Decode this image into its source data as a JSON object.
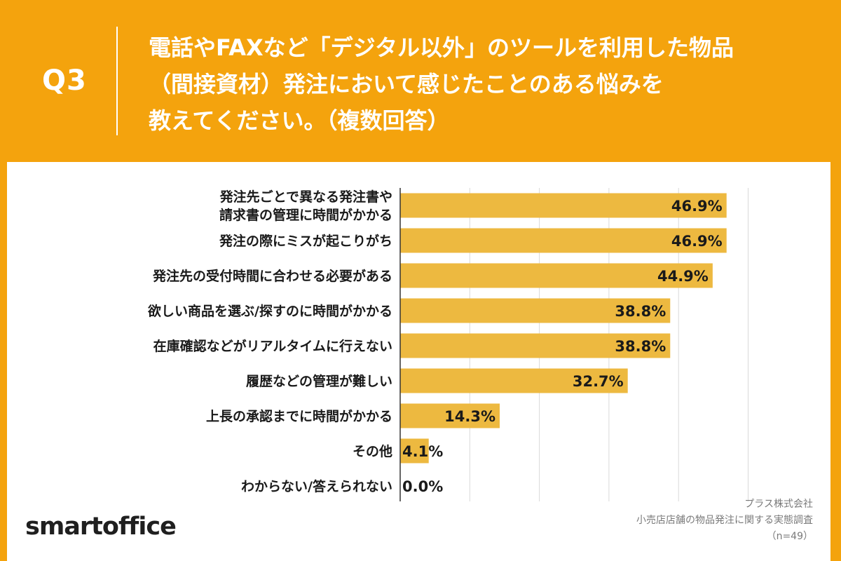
{
  "header": {
    "question_no": "Q3",
    "question_lines": [
      "電話やFAXなど「デジタル以外」のツールを利用した物品",
      "（間接資材）発注において感じたことのある悩みを",
      "教えてください。（複数回答）"
    ]
  },
  "chart_data": {
    "type": "bar",
    "orientation": "horizontal",
    "categories": [
      [
        "発注先ごとで異なる発注書や",
        "請求書の管理に時間がかかる"
      ],
      [
        "発注の際にミスが起こりがち"
      ],
      [
        "発注先の受付時間に合わせる必要がある"
      ],
      [
        "欲しい商品を選ぶ/探すのに時間がかかる"
      ],
      [
        "在庫確認などがリアルタイムに行えない"
      ],
      [
        "履歴などの管理が難しい"
      ],
      [
        "上長の承認までに時間がかかる"
      ],
      [
        "その他"
      ],
      [
        "わからない/答えられない"
      ]
    ],
    "values": [
      46.9,
      46.9,
      44.9,
      38.8,
      38.8,
      32.7,
      14.3,
      4.1,
      0.0
    ],
    "value_labels": [
      "46.9%",
      "46.9%",
      "44.9%",
      "38.8%",
      "38.8%",
      "32.7%",
      "14.3%",
      "4.1%",
      "0.0%"
    ],
    "xlim": [
      0,
      50
    ],
    "grid": true,
    "bar_color": "#EDB940",
    "grid_color": "#D9D9D9"
  },
  "source": {
    "company": "プラス株式会社",
    "survey": "小売店店舗の物品発注に関する実態調査",
    "n": "（n=49）"
  },
  "logo": {
    "text": "smartoffice"
  },
  "colors": {
    "background": "#F4A30D",
    "panel": "#FFFFFF",
    "text": "#1A1A1A"
  }
}
